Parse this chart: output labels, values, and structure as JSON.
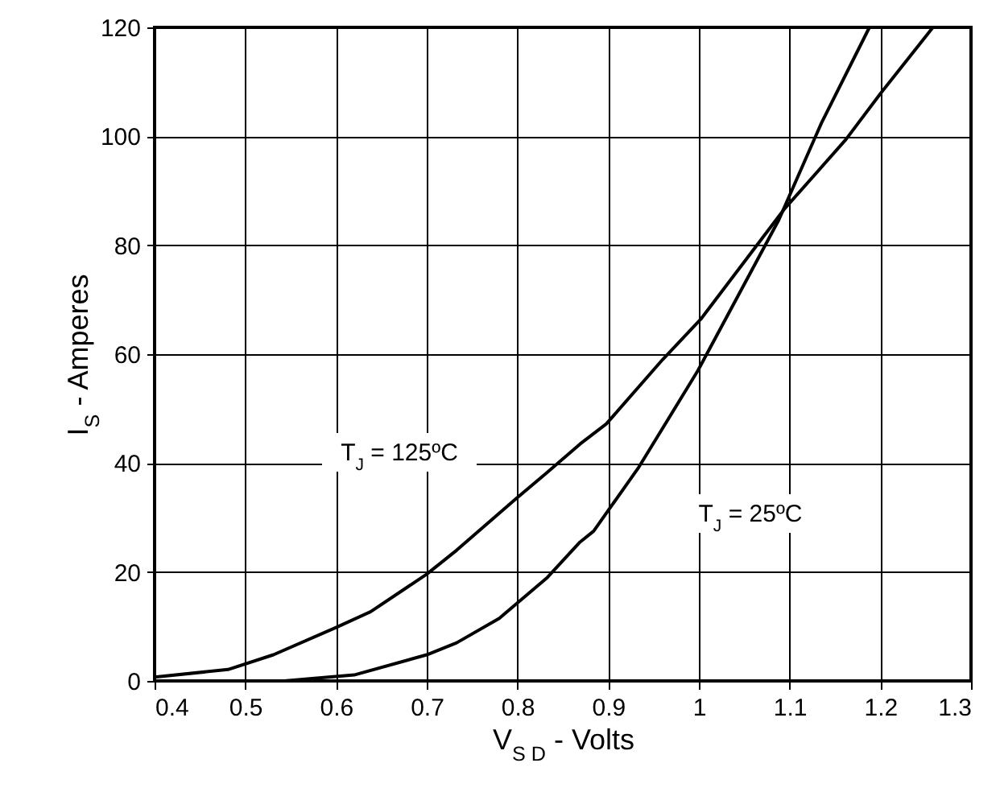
{
  "chart_data": {
    "type": "line",
    "xlabel": "V$_{S D}$ - Volts",
    "ylabel": "I$_{S}$ - Amperes",
    "xlim": [
      0.4,
      1.3
    ],
    "xticks": [
      0.4,
      0.5,
      0.6,
      0.7,
      0.8,
      0.9,
      1,
      1.1,
      1.2,
      1.3
    ],
    "ylim": [
      0,
      120
    ],
    "yticks": [
      0,
      20,
      40,
      60,
      80,
      100,
      120
    ],
    "grid": true,
    "line_style": "solid",
    "marker": "none",
    "series": [
      {
        "color": "#000000",
        "x": [
          0.4,
          0.481,
          0.531,
          0.6,
          0.638,
          0.7,
          0.733,
          0.798,
          0.833,
          0.869,
          0.898,
          0.96,
          1.002,
          1.094,
          1.162,
          1.2,
          1.258
        ],
        "values": [
          0.7,
          2.1,
          4.8,
          9.8,
          12.7,
          19.6,
          24,
          33.4,
          38.3,
          43.5,
          47.2,
          59,
          66.4,
          86.6,
          99.4,
          107.8,
          120
        ]
      },
      {
        "color": "#000000",
        "x": [
          0.543,
          0.62,
          0.7,
          0.733,
          0.78,
          0.833,
          0.869,
          0.884,
          0.934,
          0.999,
          1.088,
          1.135,
          1.188
        ],
        "values": [
          0,
          1.1,
          4.8,
          7,
          11.5,
          19,
          25.5,
          27.5,
          39.3,
          57,
          84.6,
          102.4,
          120
        ]
      }
    ],
    "annotations": [
      "T$_{J}$ = 125ºC",
      "T$_{J}$ = 25ºC"
    ]
  }
}
